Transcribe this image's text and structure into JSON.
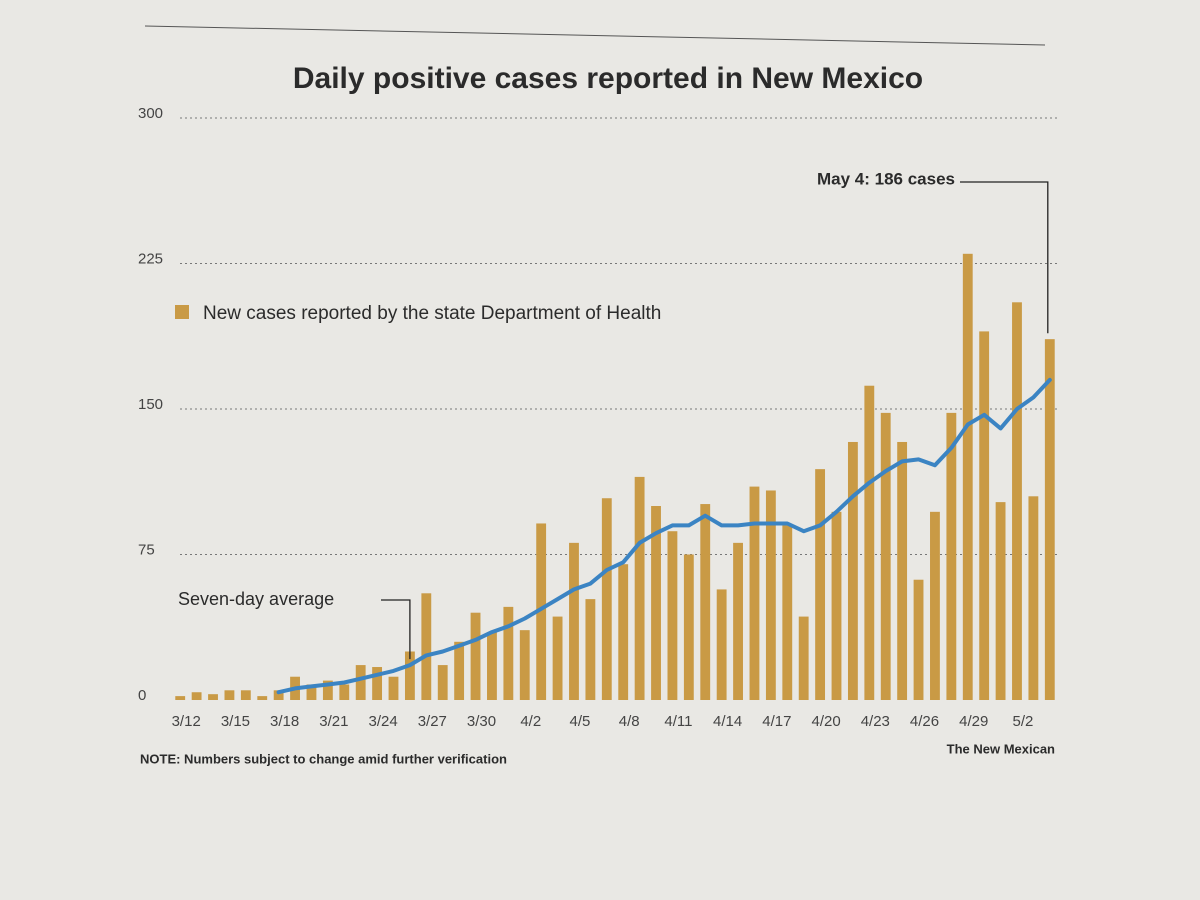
{
  "chart_data": {
    "type": "bar",
    "title": "Daily positive cases reported in New Mexico",
    "annotation": "May 4: 186 cases",
    "note": "NOTE: Numbers subject to change amid further verification",
    "source": "The New Mexican",
    "categories": [
      "3/12",
      null,
      null,
      "3/15",
      null,
      null,
      "3/18",
      null,
      null,
      "3/21",
      null,
      null,
      "3/24",
      null,
      null,
      "3/27",
      null,
      null,
      "3/30",
      null,
      null,
      "4/2",
      null,
      null,
      "4/5",
      null,
      null,
      "4/8",
      null,
      null,
      "4/11",
      null,
      null,
      "4/14",
      null,
      null,
      "4/17",
      null,
      null,
      "4/20",
      null,
      null,
      "4/23",
      null,
      null,
      "4/26",
      null,
      null,
      "4/29",
      null,
      null,
      "5/2",
      null,
      null
    ],
    "series": [
      {
        "name": "New cases reported by the state Department of Health",
        "type": "bar",
        "color": "#c99a45",
        "values": [
          2,
          4,
          3,
          5,
          5,
          2,
          5,
          12,
          8,
          10,
          8,
          18,
          17,
          12,
          25,
          55,
          18,
          30,
          45,
          35,
          48,
          36,
          91,
          43,
          81,
          52,
          104,
          70,
          115,
          100,
          87,
          75,
          101,
          57,
          81,
          110,
          108,
          90,
          43,
          119,
          97,
          133,
          162,
          148,
          133,
          62,
          97,
          148,
          230,
          190,
          102,
          205,
          105,
          186
        ]
      },
      {
        "name": "Seven-day average",
        "type": "line",
        "color": "#3b84c3",
        "values": [
          null,
          null,
          null,
          null,
          null,
          null,
          4,
          6,
          7,
          8,
          9,
          11,
          13,
          15,
          18,
          23,
          25,
          28,
          31,
          35,
          38,
          42,
          47,
          52,
          57,
          60,
          67,
          71,
          81,
          86,
          90,
          90,
          95,
          90,
          90,
          91,
          91,
          91,
          87,
          90,
          97,
          105,
          112,
          118,
          123,
          124,
          121,
          130,
          142,
          147,
          140,
          150,
          156,
          165
        ]
      }
    ],
    "ylim": [
      0,
      300
    ],
    "yticks": [
      0,
      75,
      150,
      225,
      300
    ],
    "grid": true,
    "legend": "top-left"
  }
}
